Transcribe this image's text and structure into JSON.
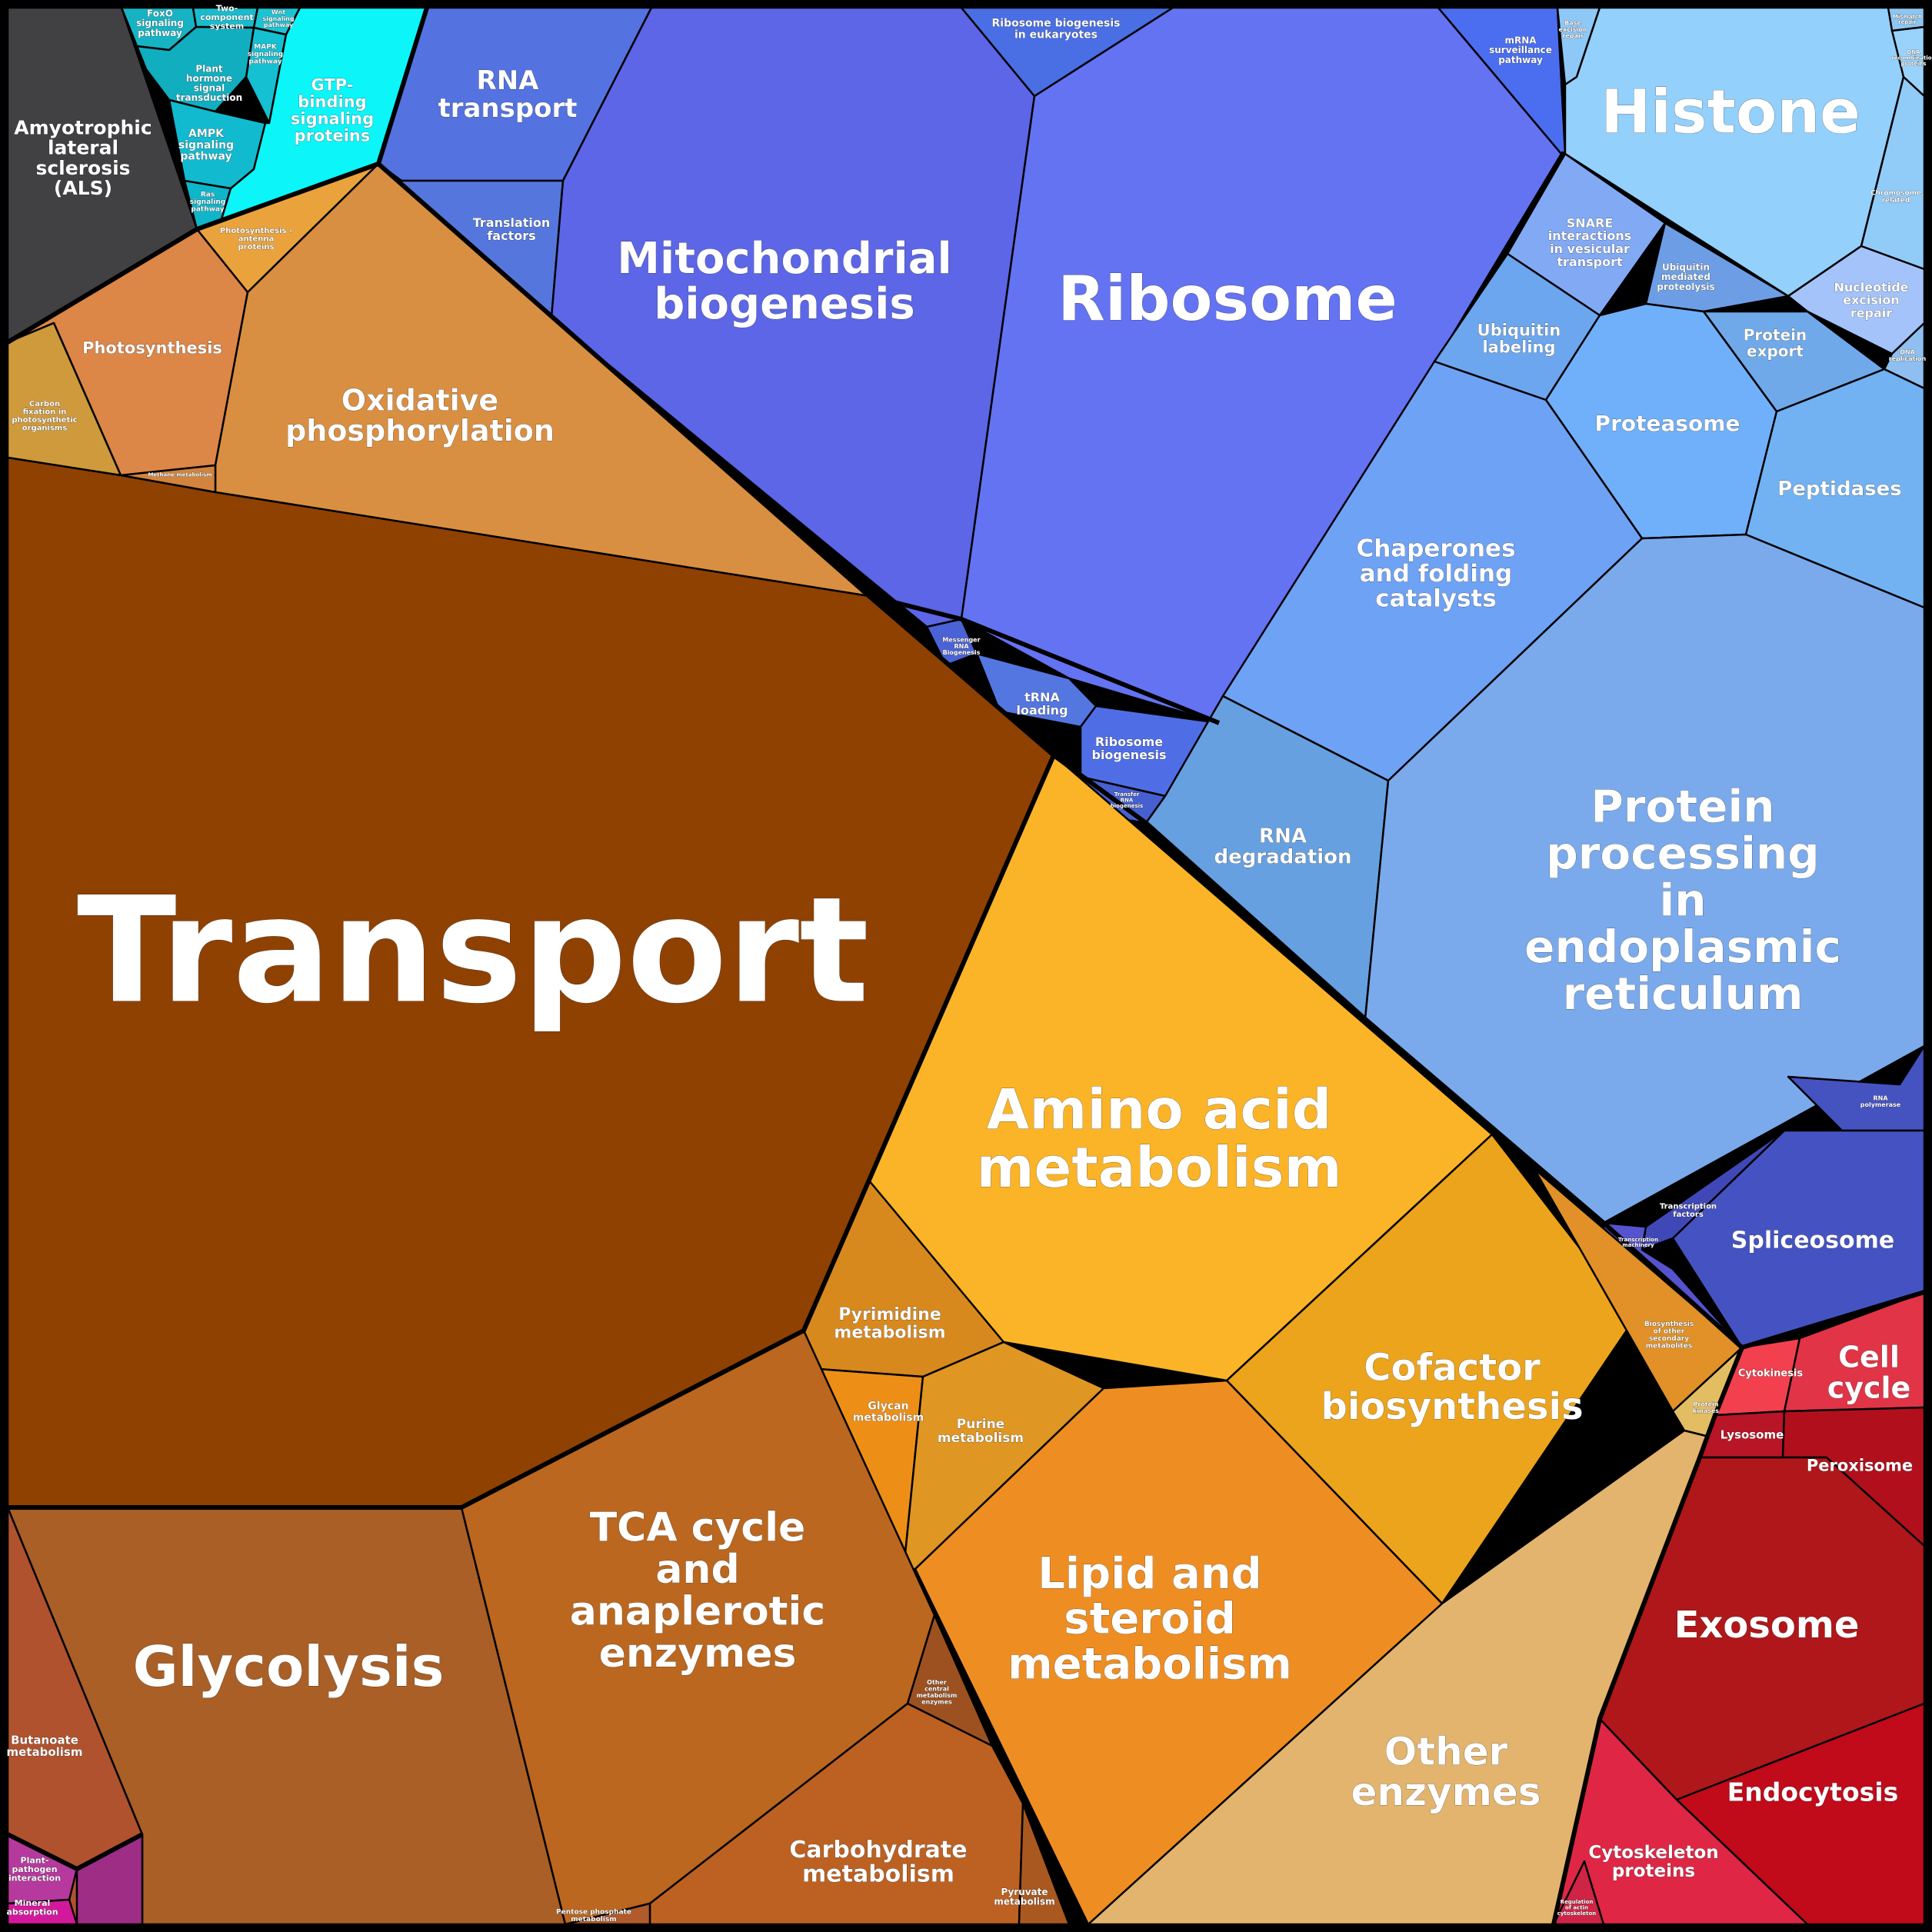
{
  "title": "",
  "cells": [
    {
      "id": "als",
      "label": "Amyotrophic\nlateral\nsclerosis\n(ALS)",
      "color": "#414042"
    },
    {
      "id": "foxo",
      "label": "FoxO\nsignaling\npathway",
      "color": "#17b3c4"
    },
    {
      "id": "two_component",
      "label": "Two-\ncomponent\nsystem",
      "color": "#19bccd"
    },
    {
      "id": "wnt",
      "label": "Wnt\nsignaling\npathway",
      "color": "#1cc3d3"
    },
    {
      "id": "mapk",
      "label": "MAPK\nsignaling\npathway",
      "color": "#14c0d2"
    },
    {
      "id": "plant_hormone",
      "label": "Plant\nhormone\nsignal\ntransduction",
      "color": "#11aec0"
    },
    {
      "id": "ampk",
      "label": "AMPK\nsignaling\npathway",
      "color": "#12bad0"
    },
    {
      "id": "ras",
      "label": "Ras\nsignaling\npathway",
      "color": "#0fb5c9"
    },
    {
      "id": "gtp",
      "label": "GTP-\nbinding\nsignaling\nproteins",
      "color": "#0cf5f9"
    },
    {
      "id": "rna_transport",
      "label": "RNA\ntransport",
      "color": "#5472e0"
    },
    {
      "id": "translation_factors",
      "label": "Translation\nfactors",
      "color": "#5577dd"
    },
    {
      "id": "mito_bio",
      "label": "Mitochondrial\nbiogenesis",
      "color": "#5c66e6"
    },
    {
      "id": "ribo_euk",
      "label": "Ribosome biogenesis\nin eukaryotes",
      "color": "#4a6ee4"
    },
    {
      "id": "ribosome",
      "label": "Ribosome",
      "color": "#6473f2"
    },
    {
      "id": "mrna_surv",
      "label": "mRNA\nsurveillance\npathway",
      "color": "#4a6eef"
    },
    {
      "id": "mrna_bio",
      "label": "Messenger\nRNA\nBiogenesis",
      "color": "#4b62d6"
    },
    {
      "id": "trna_loading",
      "label": "tRNA\nloading",
      "color": "#5376e1"
    },
    {
      "id": "ribo_bio",
      "label": "Ribosome\nbiogenesis",
      "color": "#4f6ee6"
    },
    {
      "id": "transfer_rna",
      "label": "Transfer\nRNA\nbiogenesis",
      "color": "#4660d0"
    },
    {
      "id": "base_excision",
      "label": "Base\nexcision\nrepair",
      "color": "#8ec8f7"
    },
    {
      "id": "histone",
      "label": "Histone",
      "color": "#93d0fb"
    },
    {
      "id": "mismatch",
      "label": "Mismatch\nrepair",
      "color": "#8cc6f2"
    },
    {
      "id": "dna_recomb",
      "label": "DNA\nrecombination\nproteins",
      "color": "#99d3fb"
    },
    {
      "id": "chromosome",
      "label": "Chromosome\nrelated",
      "color": "#91cbf7"
    },
    {
      "id": "ner",
      "label": "Nucleotide\nexcision\nrepair",
      "color": "#a4c3fa"
    },
    {
      "id": "dna_rep",
      "label": "DNA\nreplication",
      "color": "#8ebff0"
    },
    {
      "id": "snare",
      "label": "SNARE\ninteractions\nin vesicular\ntransport",
      "color": "#82a9f4"
    },
    {
      "id": "ubi_proteo",
      "label": "Ubiquitin\nmediated\nproteolysis",
      "color": "#6d9ee5"
    },
    {
      "id": "ubi_label",
      "label": "Ubiquitin\nlabeling",
      "color": "#6ca6ee"
    },
    {
      "id": "protein_export",
      "label": "Protein\nexport",
      "color": "#6fa9ea"
    },
    {
      "id": "proteasome",
      "label": "Proteasome",
      "color": "#70b0fa"
    },
    {
      "id": "peptidases",
      "label": "Peptidases",
      "color": "#72b2f3"
    },
    {
      "id": "chaperones",
      "label": "Chaperones\nand folding\ncatalysts",
      "color": "#6ea2f5"
    },
    {
      "id": "rna_deg",
      "label": "RNA\ndegradation",
      "color": "#66a0e0"
    },
    {
      "id": "protein_er",
      "label": "Protein\nprocessing\nin\nendoplasmic\nreticulum",
      "color": "#7aaaeb"
    },
    {
      "id": "rna_pol",
      "label": "RNA\npolymerase",
      "color": "#4553c0"
    },
    {
      "id": "spliceosome",
      "label": "Spliceosome",
      "color": "#4553c2"
    },
    {
      "id": "transcription_factors",
      "label": "Transcription\nfactors",
      "color": "#4048b8"
    },
    {
      "id": "transcription_mach",
      "label": "Transcription\nmachinery",
      "color": "#5553cd"
    },
    {
      "id": "photosyn_antenna",
      "label": "Photosynthesis -\nantenna\nproteins",
      "color": "#eaa33c"
    },
    {
      "id": "photosynthesis",
      "label": "Photosynthesis",
      "color": "#dc8648"
    },
    {
      "id": "carbon_fix",
      "label": "Carbon\nfixation in\nphotosynthetic\norganisms",
      "color": "#cf9a3c"
    },
    {
      "id": "oxphos",
      "label": "Oxidative\nphosphorylation",
      "color": "#d98f41"
    },
    {
      "id": "methane",
      "label": "Methane metabolism",
      "color": "#d2843d"
    },
    {
      "id": "transport",
      "label": "Transport",
      "color": "#8f4102"
    },
    {
      "id": "amino_acid",
      "label": "Amino acid\nmetabolism",
      "color": "#fbb427"
    },
    {
      "id": "pyrimidine",
      "label": "Pyrimidine\nmetabolism",
      "color": "#d8891e"
    },
    {
      "id": "glycan",
      "label": "Glycan\nmetabolism",
      "color": "#ed8f17"
    },
    {
      "id": "purine",
      "label": "Purine\nmetabolism",
      "color": "#df9623"
    },
    {
      "id": "cofactor",
      "label": "Cofactor\nbiosynthesis",
      "color": "#eca41c"
    },
    {
      "id": "secondary",
      "label": "Biosynthesis\nof other\nsecondary\nmetabolites",
      "color": "#e19127"
    },
    {
      "id": "prenyl",
      "label": "Protein\nkinases",
      "color": "#e3bd62"
    },
    {
      "id": "lipid",
      "label": "Lipid and\nsteroid\nmetabolism",
      "color": "#ee8e22"
    },
    {
      "id": "other_enzymes",
      "label": "Other\nenzymes",
      "color": "#e3b46e"
    },
    {
      "id": "butanoate",
      "label": "Butanoate\nmetabolism",
      "color": "#b0522e"
    },
    {
      "id": "glycolysis",
      "label": "Glycolysis",
      "color": "#a95f26"
    },
    {
      "id": "tca",
      "label": "TCA cycle\nand\nanaplerotic\nenzymes",
      "color": "#bb671f"
    },
    {
      "id": "other_central",
      "label": "Other\ncentral\nmetabolism\nenzymes",
      "color": "#9e5120"
    },
    {
      "id": "carbohydrate",
      "label": "Carbohydrate\nmetabolism",
      "color": "#bd6122"
    },
    {
      "id": "pentose",
      "label": "Pentose phosphate\nmetabolism",
      "color": "#b15a2b"
    },
    {
      "id": "pyruvate",
      "label": "Pyruvate\nmetabolism",
      "color": "#a95920"
    },
    {
      "id": "cytokinesis",
      "label": "Cytokinesis",
      "color": "#f2404e"
    },
    {
      "id": "cell_cycle",
      "label": "Cell\ncycle",
      "color": "#e13447"
    },
    {
      "id": "lysosome",
      "label": "Lysosome",
      "color": "#b81526"
    },
    {
      "id": "peroxisome",
      "label": "Peroxisome",
      "color": "#b20f1c"
    },
    {
      "id": "exosome",
      "label": "Exosome",
      "color": "#b0171a"
    },
    {
      "id": "endocytosis",
      "label": "Endocytosis",
      "color": "#c10a1a"
    },
    {
      "id": "cytoskeleton",
      "label": "Cytoskeleton\nproteins",
      "color": "#df2745"
    },
    {
      "id": "reg_actin",
      "label": "Regulation\nof actin\ncytoskeleton",
      "color": "#cf2446"
    },
    {
      "id": "plant_pathogen",
      "label": "Plant-\npathogen\ninteraction",
      "color": "#b6399e"
    },
    {
      "id": "mineral",
      "label": "Mineral\nabsorption",
      "color": "#d3199b"
    },
    {
      "id": "env_misc",
      "label": "",
      "color": "#9e2d86"
    }
  ]
}
